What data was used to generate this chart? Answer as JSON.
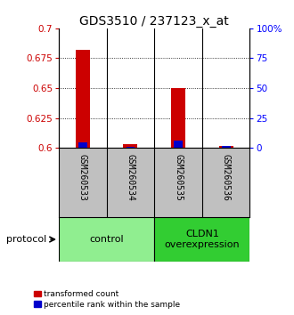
{
  "title": "GDS3510 / 237123_x_at",
  "samples": [
    "GSM260533",
    "GSM260534",
    "GSM260535",
    "GSM260536"
  ],
  "red_values": [
    0.682,
    0.603,
    0.65,
    0.602
  ],
  "blue_values": [
    0.605,
    0.601,
    0.606,
    0.602
  ],
  "ylim_left": [
    0.6,
    0.7
  ],
  "ylim_right": [
    0,
    100
  ],
  "yticks_left": [
    0.6,
    0.625,
    0.65,
    0.675,
    0.7
  ],
  "yticks_right": [
    0,
    25,
    50,
    75,
    100
  ],
  "ytick_labels_left": [
    "0.6",
    "0.625",
    "0.65",
    "0.675",
    "0.7"
  ],
  "ytick_labels_right": [
    "0",
    "25",
    "50",
    "75",
    "100%"
  ],
  "groups": [
    {
      "label": "control",
      "samples": [
        0,
        1
      ],
      "color": "#90ee90"
    },
    {
      "label": "CLDN1\noverexpression",
      "samples": [
        2,
        3
      ],
      "color": "#32cd32"
    }
  ],
  "red_bar_width": 0.3,
  "blue_bar_width": 0.18,
  "red_color": "#cc0000",
  "blue_color": "#0000cc",
  "bg_plot": "#ffffff",
  "bg_sample": "#c0c0c0",
  "legend_red": "transformed count",
  "legend_blue": "percentile rank within the sample",
  "protocol_label": "protocol",
  "title_fontsize": 10,
  "tick_fontsize": 7.5,
  "sample_label_fontsize": 7,
  "group_label_fontsize": 8
}
